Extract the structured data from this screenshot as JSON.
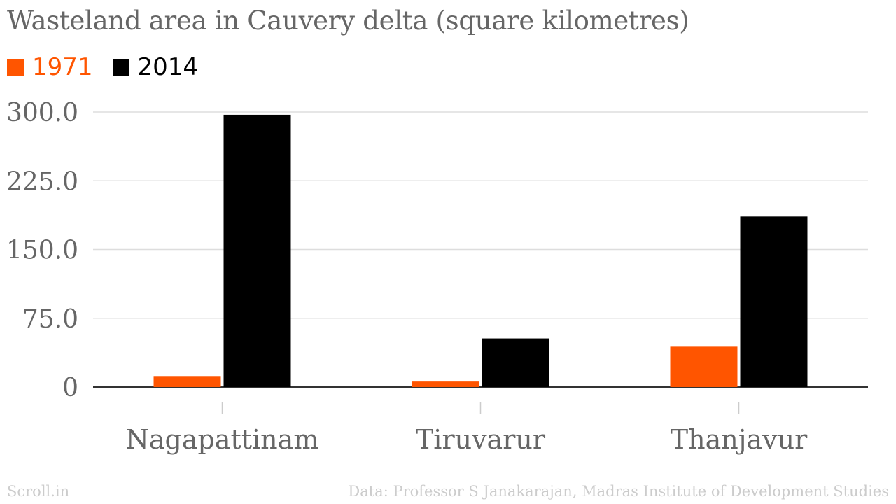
{
  "chart_data": {
    "type": "bar",
    "title": "Wasteland area in Cauvery delta (square kilometres)",
    "xlabel": "",
    "ylabel": "",
    "categories": [
      "Nagapattinam",
      "Tiruvarur",
      "Thanjavur"
    ],
    "series": [
      {
        "name": "1971",
        "color": "#ff5500",
        "values": [
          12,
          6,
          44
        ]
      },
      {
        "name": "2014",
        "color": "#000000",
        "values": [
          297,
          53,
          186
        ]
      }
    ],
    "ylim": [
      0,
      300
    ],
    "yticks": [
      0,
      75,
      150,
      225,
      300
    ],
    "ytick_labels": [
      "0",
      "75.0",
      "150.0",
      "225.0",
      "300.0"
    ],
    "grid": true,
    "legend_position": "top-left"
  },
  "footer": {
    "source_brand": "Scroll.in",
    "source_note": "Data: Professor S Janakarajan, Madras Institute of Development Studies"
  }
}
